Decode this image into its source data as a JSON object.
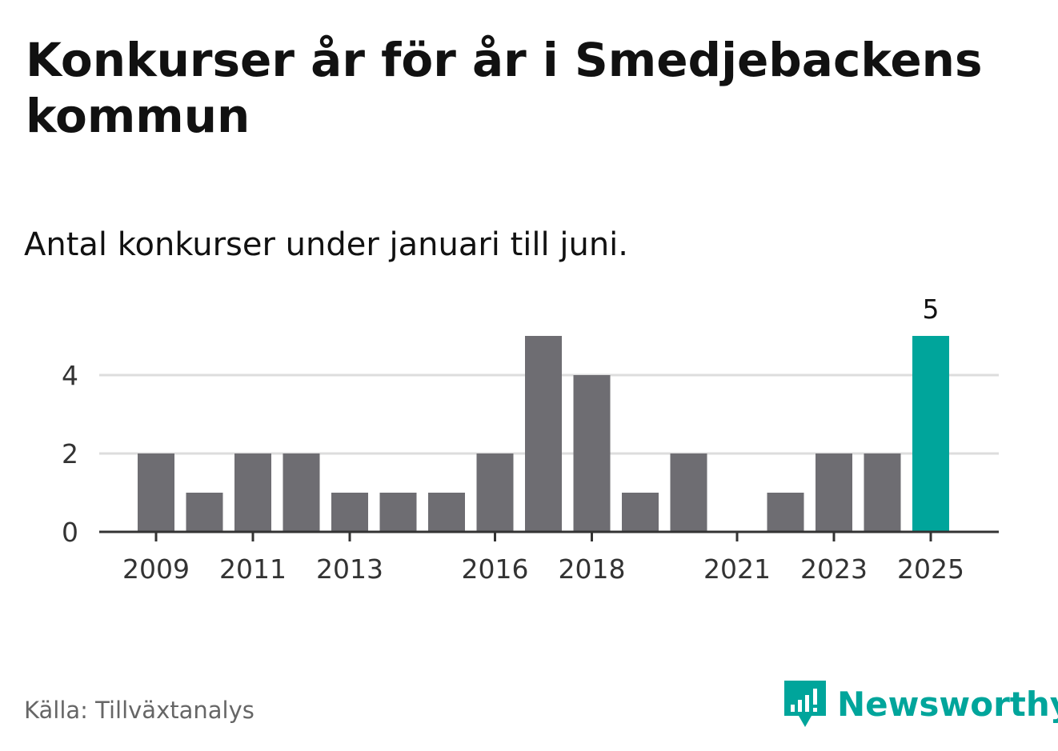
{
  "title": "Konkurser år för år i Smedjebackens kommun",
  "subtitle": "Antal konkurser under januari till juni.",
  "source": "Källa: Tillväxtanalys",
  "brand": {
    "name": "Newsworthy",
    "color": "#00a59b",
    "icon": "bar-chart-speech-bubble-icon"
  },
  "chart_data": {
    "type": "bar",
    "categories": [
      "2009",
      "2010",
      "2011",
      "2012",
      "2013",
      "2014",
      "2015",
      "2016",
      "2017",
      "2018",
      "2019",
      "2020",
      "2021",
      "2022",
      "2023",
      "2024",
      "2025"
    ],
    "values": [
      2,
      1,
      2,
      2,
      1,
      1,
      1,
      2,
      5,
      4,
      1,
      2,
      0,
      1,
      2,
      2,
      5
    ],
    "x_tick_labels": [
      "2009",
      "2011",
      "2013",
      "2016",
      "2018",
      "2021",
      "2023",
      "2025"
    ],
    "y_ticks": [
      0,
      2,
      4
    ],
    "ylim": [
      0,
      5
    ],
    "grid": true,
    "highlight": {
      "category": "2025",
      "color": "#00a59b",
      "value_label": "5"
    },
    "bar_color": "#6e6d72",
    "grid_color": "#dddddd",
    "axis_color": "#333333"
  }
}
